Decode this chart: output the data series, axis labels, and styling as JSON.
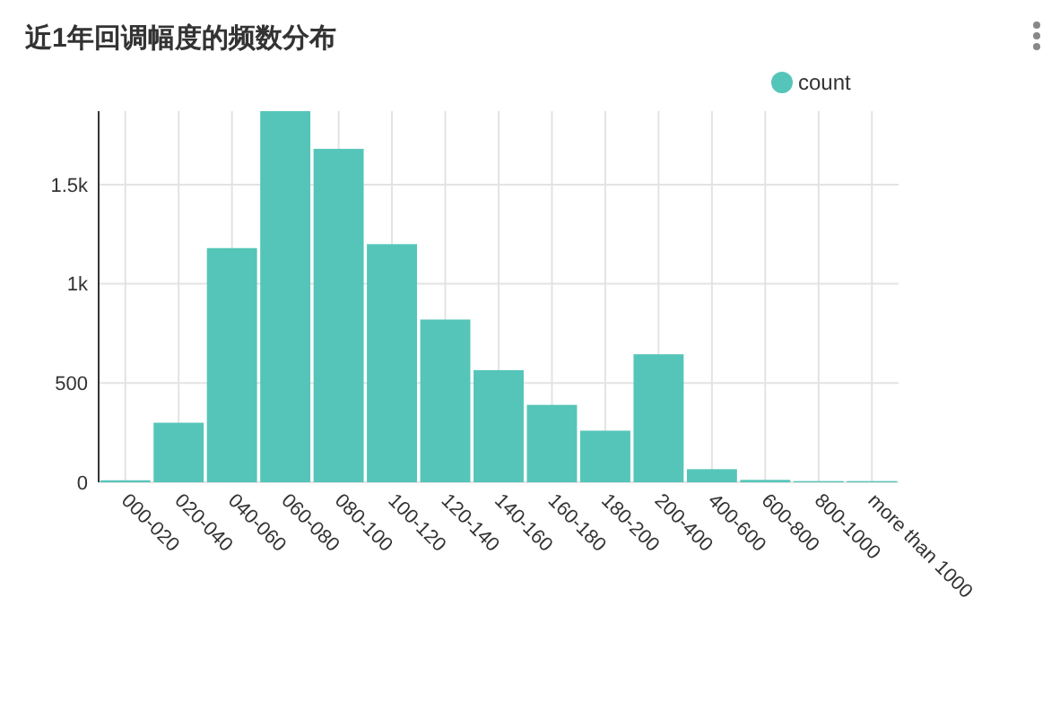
{
  "chart_data": {
    "type": "bar",
    "title": "近1年回调幅度的频数分布",
    "categories": [
      "000-020",
      "020-040",
      "040-060",
      "060-080",
      "080-100",
      "100-120",
      "120-140",
      "140-160",
      "160-180",
      "180-200",
      "200-400",
      "400-600",
      "600-800",
      "800-1000",
      "more than 1000"
    ],
    "series": [
      {
        "name": "count",
        "color": "#55c5b9",
        "values": [
          10,
          300,
          1180,
          1870,
          1680,
          1200,
          820,
          565,
          390,
          260,
          645,
          66,
          12,
          6,
          6
        ]
      }
    ],
    "ylim": [
      0,
      1870
    ],
    "yticks": [
      0,
      500,
      {
        "value": 1000,
        "label": "1k"
      },
      {
        "value": 1500,
        "label": "1.5k"
      }
    ],
    "grid": true,
    "legend": "top right"
  }
}
